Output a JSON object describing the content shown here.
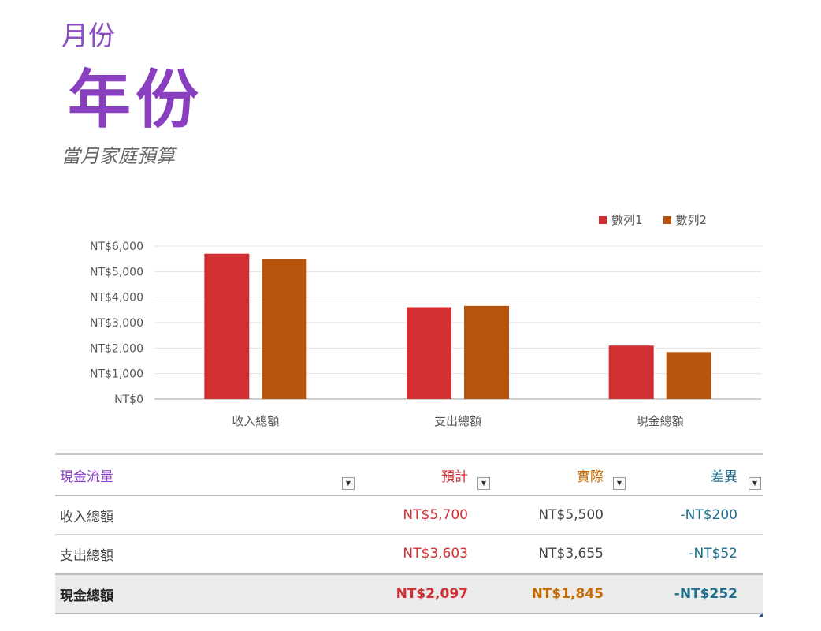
{
  "header": {
    "month": "月份",
    "year": "年份",
    "subtitle": "當月家庭預算"
  },
  "colors": {
    "accent_purple": "#8a3fc0",
    "series1": "#d22f33",
    "series2": "#b5540a",
    "diff_teal": "#1e6e8c"
  },
  "chart_data": {
    "type": "bar",
    "categories": [
      "收入總額",
      "支出總額",
      "現金總額"
    ],
    "series": [
      {
        "name": "數列1",
        "values": [
          5700,
          3603,
          2097
        ]
      },
      {
        "name": "數列2",
        "values": [
          5500,
          3655,
          1845
        ]
      }
    ],
    "y_ticks": [
      "NT$0",
      "NT$1,000",
      "NT$2,000",
      "NT$3,000",
      "NT$4,000",
      "NT$5,000",
      "NT$6,000"
    ],
    "ylim": [
      0,
      6000
    ],
    "grid": true,
    "legend_position": "top-right"
  },
  "table": {
    "headers": {
      "name": "現金流量",
      "budget": "預計",
      "actual": "實際",
      "diff": "差異"
    },
    "dropdown_icon": "▼",
    "rows": [
      {
        "name": "收入總額",
        "budget": "NT$5,700",
        "actual": "NT$5,500",
        "diff": "-NT$200"
      },
      {
        "name": "支出總額",
        "budget": "NT$3,603",
        "actual": "NT$3,655",
        "diff": "-NT$52"
      }
    ],
    "total": {
      "name": "現金總額",
      "budget": "NT$2,097",
      "actual": "NT$1,845",
      "diff": "-NT$252"
    }
  }
}
